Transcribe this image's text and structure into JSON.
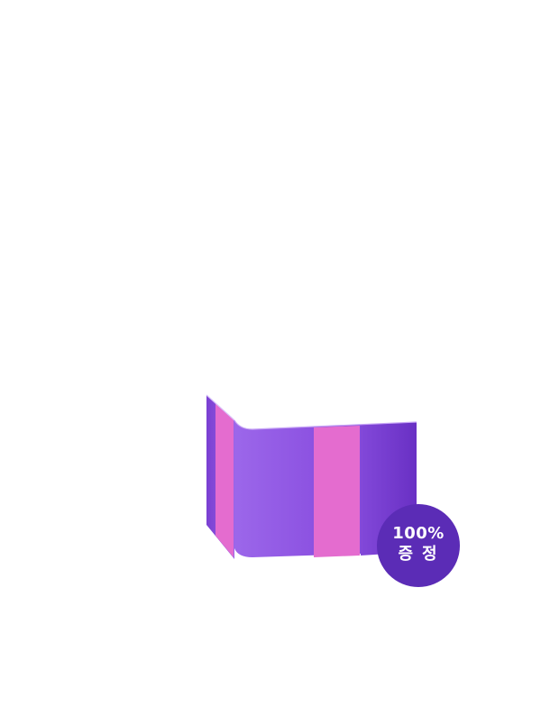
{
  "badge": {
    "line1": "100%",
    "line2": "증정"
  },
  "colors": {
    "box_purple": "#8a4fdf",
    "box_purple_dark": "#6f35c7",
    "band_pink": "#e46ccf",
    "badge_bg": "#5b2cb6",
    "badge_text": "#ffffff"
  }
}
